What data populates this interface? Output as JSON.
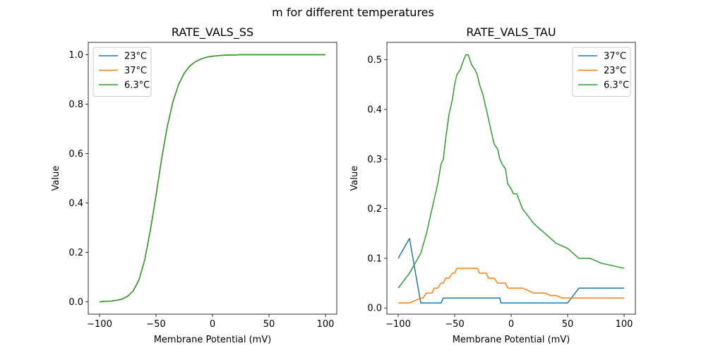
{
  "suptitle": "m for different temperatures",
  "colors": {
    "blue": "#1f77b4",
    "orange": "#ff7f0e",
    "green": "#2ca02c"
  },
  "chart_data": [
    {
      "type": "line",
      "title": "RATE_VALS_SS",
      "xlabel": "Membrane Potential (mV)",
      "ylabel": "Value",
      "xlim": [
        -110,
        110
      ],
      "ylim": [
        -0.05,
        1.05
      ],
      "xticks": [
        -100,
        -50,
        0,
        50,
        100
      ],
      "xtick_labels": [
        "−100",
        "−50",
        "0",
        "50",
        "100"
      ],
      "yticks": [
        0.0,
        0.2,
        0.4,
        0.6,
        0.8,
        1.0
      ],
      "ytick_labels": [
        "0.0",
        "0.2",
        "0.4",
        "0.6",
        "0.8",
        "1.0"
      ],
      "legend_position": "top-left",
      "grid": false,
      "x": [
        -100,
        -95,
        -90,
        -85,
        -80,
        -75,
        -70,
        -65,
        -60,
        -55,
        -50,
        -45,
        -40,
        -35,
        -30,
        -25,
        -20,
        -15,
        -10,
        -5,
        0,
        5,
        10,
        15,
        20,
        25,
        30,
        40,
        50,
        60,
        70,
        80,
        90,
        100
      ],
      "series": [
        {
          "name": "23°C",
          "color": "#1f77b4",
          "values": [
            0.0,
            0.002,
            0.003,
            0.006,
            0.011,
            0.023,
            0.045,
            0.09,
            0.17,
            0.29,
            0.43,
            0.58,
            0.71,
            0.81,
            0.88,
            0.925,
            0.955,
            0.972,
            0.983,
            0.99,
            0.994,
            0.996,
            0.998,
            0.999,
            0.999,
            1.0,
            1.0,
            1.0,
            1.0,
            1.0,
            1.0,
            1.0,
            1.0,
            1.0
          ]
        },
        {
          "name": "37°C",
          "color": "#ff7f0e",
          "values": [
            0.0,
            0.002,
            0.003,
            0.006,
            0.011,
            0.023,
            0.045,
            0.09,
            0.17,
            0.29,
            0.43,
            0.58,
            0.71,
            0.81,
            0.88,
            0.925,
            0.955,
            0.972,
            0.983,
            0.99,
            0.994,
            0.996,
            0.998,
            0.999,
            0.999,
            1.0,
            1.0,
            1.0,
            1.0,
            1.0,
            1.0,
            1.0,
            1.0,
            1.0
          ]
        },
        {
          "name": "6.3°C",
          "color": "#2ca02c",
          "values": [
            0.0,
            0.002,
            0.003,
            0.006,
            0.011,
            0.023,
            0.045,
            0.09,
            0.17,
            0.29,
            0.43,
            0.58,
            0.71,
            0.81,
            0.88,
            0.925,
            0.955,
            0.972,
            0.983,
            0.99,
            0.994,
            0.996,
            0.998,
            0.999,
            0.999,
            1.0,
            1.0,
            1.0,
            1.0,
            1.0,
            1.0,
            1.0,
            1.0,
            1.0
          ]
        }
      ]
    },
    {
      "type": "line",
      "title": "RATE_VALS_TAU",
      "xlabel": "Membrane Potential (mV)",
      "ylabel": "Value",
      "xlim": [
        -110,
        110
      ],
      "ylim": [
        -0.0125,
        0.535
      ],
      "xticks": [
        -100,
        -50,
        0,
        50,
        100
      ],
      "xtick_labels": [
        "−100",
        "−50",
        "0",
        "50",
        "100"
      ],
      "yticks": [
        0.0,
        0.1,
        0.2,
        0.3,
        0.4,
        0.5
      ],
      "ytick_labels": [
        "0.0",
        "0.1",
        "0.2",
        "0.3",
        "0.4",
        "0.5"
      ],
      "legend_position": "top-right",
      "grid": false,
      "series": [
        {
          "name": "37°C",
          "color": "#1f77b4",
          "x": [
            -100,
            -90,
            -80,
            -70,
            -62,
            -60,
            -55,
            -50,
            -40,
            -30,
            -20,
            -10,
            -9,
            0,
            10,
            20,
            30,
            40,
            50,
            60,
            70,
            80,
            90,
            100
          ],
          "values": [
            0.1,
            0.14,
            0.01,
            0.01,
            0.01,
            0.02,
            0.02,
            0.02,
            0.02,
            0.02,
            0.02,
            0.02,
            0.01,
            0.01,
            0.01,
            0.01,
            0.01,
            0.01,
            0.01,
            0.04,
            0.04,
            0.04,
            0.04,
            0.04
          ]
        },
        {
          "name": "23°C",
          "color": "#ff7f0e",
          "x": [
            -100,
            -90,
            -80,
            -78,
            -75,
            -70,
            -68,
            -65,
            -62,
            -60,
            -58,
            -55,
            -52,
            -50,
            -48,
            -45,
            -40,
            -35,
            -30,
            -28,
            -25,
            -22,
            -20,
            -18,
            -15,
            -12,
            -10,
            -8,
            -5,
            -3,
            0,
            10,
            15,
            20,
            30,
            35,
            40,
            45,
            50,
            60,
            100
          ],
          "values": [
            0.01,
            0.01,
            0.02,
            0.02,
            0.03,
            0.03,
            0.04,
            0.04,
            0.05,
            0.05,
            0.06,
            0.06,
            0.07,
            0.07,
            0.08,
            0.08,
            0.08,
            0.08,
            0.08,
            0.07,
            0.07,
            0.07,
            0.06,
            0.06,
            0.06,
            0.05,
            0.05,
            0.05,
            0.05,
            0.04,
            0.04,
            0.04,
            0.035,
            0.03,
            0.03,
            0.025,
            0.025,
            0.02,
            0.02,
            0.02,
            0.02
          ]
        },
        {
          "name": "6.3°C",
          "color": "#2ca02c",
          "x": [
            -100,
            -90,
            -85,
            -80,
            -75,
            -70,
            -65,
            -62,
            -60,
            -58,
            -55,
            -52,
            -50,
            -48,
            -45,
            -42,
            -40,
            -38,
            -35,
            -32,
            -30,
            -28,
            -25,
            -22,
            -20,
            -18,
            -15,
            -12,
            -10,
            -8,
            -5,
            -3,
            0,
            2,
            5,
            10,
            20,
            30,
            40,
            50,
            60,
            70,
            80,
            90,
            100
          ],
          "values": [
            0.04,
            0.07,
            0.09,
            0.11,
            0.15,
            0.2,
            0.25,
            0.29,
            0.3,
            0.34,
            0.39,
            0.42,
            0.45,
            0.47,
            0.48,
            0.5,
            0.51,
            0.51,
            0.49,
            0.48,
            0.47,
            0.45,
            0.43,
            0.4,
            0.38,
            0.36,
            0.33,
            0.32,
            0.3,
            0.29,
            0.28,
            0.25,
            0.24,
            0.23,
            0.23,
            0.2,
            0.17,
            0.15,
            0.13,
            0.12,
            0.1,
            0.1,
            0.09,
            0.085,
            0.08
          ]
        }
      ]
    }
  ]
}
